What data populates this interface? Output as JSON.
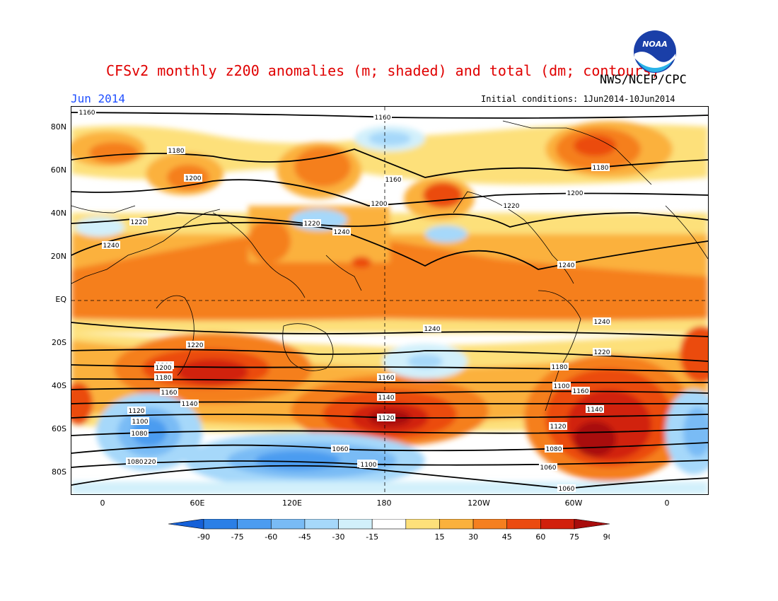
{
  "title": "CFSv2 monthly z200 anomalies (m; shaded) and total (dm; contours)",
  "agency": "NWS/NCEP/CPC",
  "month": "Jun 2014",
  "initial_conditions": "Initial conditions: 1Jun2014-10Jun2014",
  "logo_text": "NOAA",
  "lat_labels": [
    "80N",
    "60N",
    "40N",
    "20N",
    "EQ",
    "20S",
    "40S",
    "60S",
    "80S"
  ],
  "lon_labels": [
    "0",
    "60E",
    "120E",
    "180",
    "120W",
    "60W",
    "0"
  ],
  "colorbar": {
    "ticks": [
      "-90",
      "-75",
      "-60",
      "-45",
      "-30",
      "-15",
      "15",
      "30",
      "45",
      "60",
      "75",
      "90"
    ],
    "colors": [
      "#1560d8",
      "#2b7fe6",
      "#4c9cf0",
      "#79bbf5",
      "#a6d8fa",
      "#d2f0fb",
      "#ffffff",
      "#fde07a",
      "#fbb13c",
      "#f57f1f",
      "#eb4b10",
      "#d1200c",
      "#a80d0d"
    ]
  },
  "contour_labels": [
    "1160",
    "1160",
    "1180",
    "1180",
    "1200",
    "1160",
    "1200",
    "1220",
    "1200",
    "1220",
    "1220",
    "1240",
    "1240",
    "1240",
    "1240",
    "1240",
    "1220",
    "1220",
    "1200",
    "1180",
    "1160",
    "1140",
    "1120",
    "1100",
    "1080",
    "1200",
    "1160",
    "1140",
    "1120",
    "1100",
    "1080",
    "1060",
    "1220",
    "1200",
    "1180",
    "1160",
    "1140",
    "1120",
    "1100",
    "1080",
    "1060",
    "1060"
  ]
}
